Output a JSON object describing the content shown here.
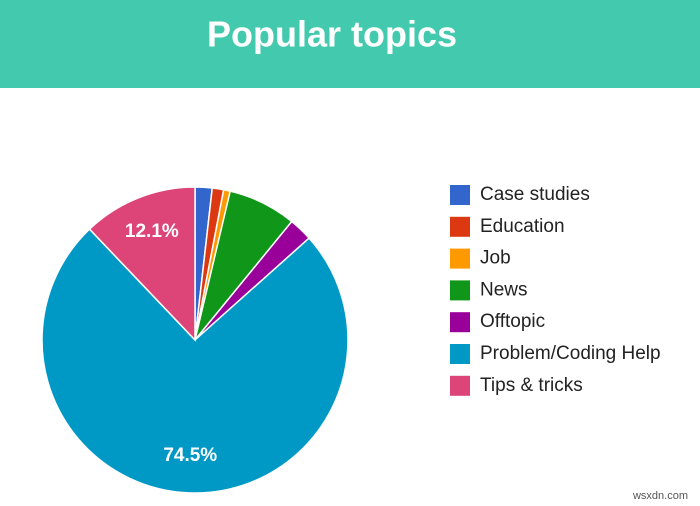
{
  "chart_data": {
    "type": "pie",
    "title": "Popular topics",
    "categories": [
      "Case studies",
      "Education",
      "Job",
      "News",
      "Offtopic",
      "Problem/Coding Help",
      "Tips & tricks"
    ],
    "values": [
      1.8,
      1.2,
      0.7,
      7.2,
      2.5,
      74.5,
      12.1
    ],
    "value_labels": [
      null,
      null,
      null,
      null,
      null,
      "74.5%",
      "12.1%"
    ],
    "colors": [
      "#3366cc",
      "#dc3912",
      "#ff9900",
      "#109618",
      "#990099",
      "#0099c6",
      "#dd4477"
    ],
    "legend": "right"
  },
  "watermark": "wsxdn.com"
}
